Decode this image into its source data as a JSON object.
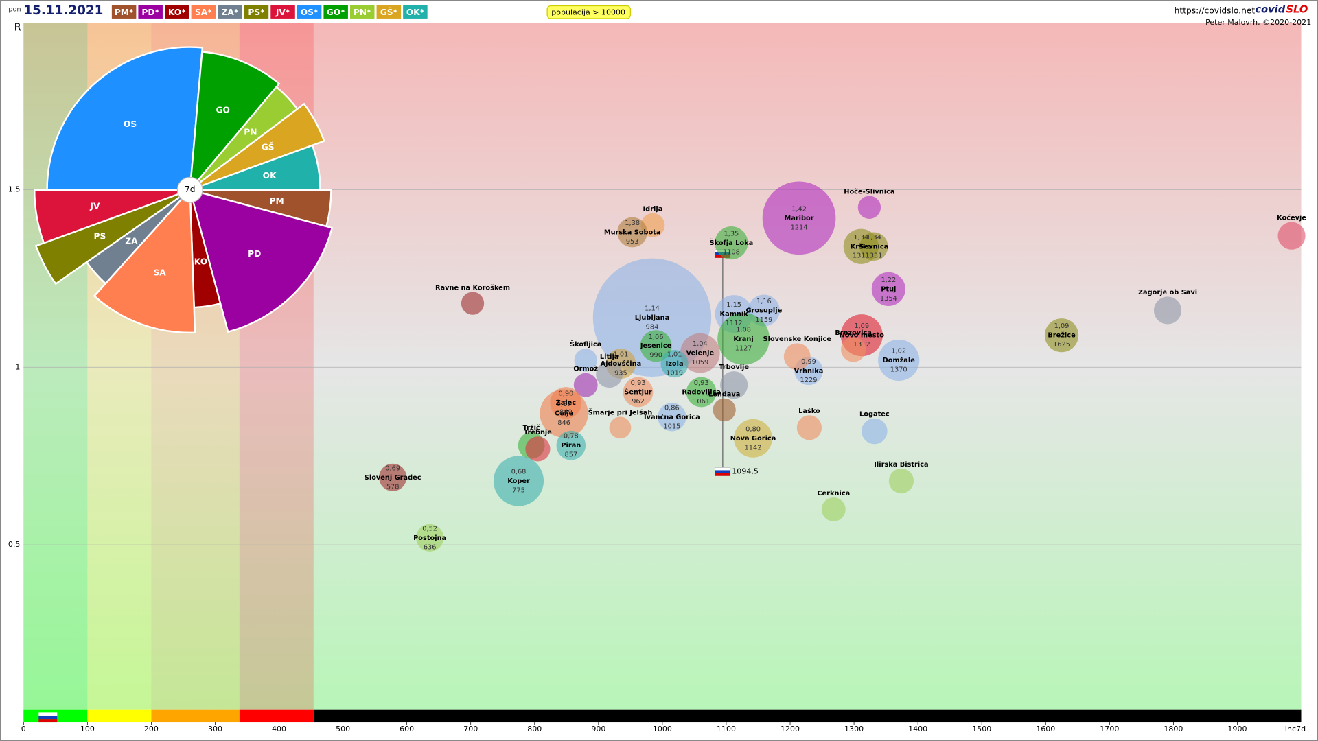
{
  "header": {
    "day": "pon",
    "date": "15.11.2021",
    "legend": [
      "PM*",
      "PD*",
      "KO*",
      "SA*",
      "ZA*",
      "PS*",
      "JV*",
      "OS*",
      "GO*",
      "PN*",
      "GŠ*",
      "OK*"
    ],
    "filter": "populacija > 10000",
    "url": "https://covidslo.net",
    "brand_a": "covid",
    "brand_b": "SLO",
    "credit": "Peter Malovrh, ©2020-2021"
  },
  "chart_data": [
    {
      "type": "scatter",
      "y_label": "R",
      "x_label": "Inc7d",
      "xlim": [
        0,
        2000
      ],
      "ylim": [
        0,
        1.97
      ],
      "xticks": [
        0,
        100,
        200,
        300,
        400,
        500,
        600,
        700,
        800,
        900,
        1000,
        1100,
        1200,
        1300,
        1400,
        1500,
        1600,
        1700,
        1800,
        1900
      ],
      "yticks": [
        0.5,
        1,
        1.5
      ],
      "grid": true,
      "zones": [
        {
          "to": 100,
          "color": "#00ff00"
        },
        {
          "to": 200,
          "color": "#ffff00"
        },
        {
          "to": 338,
          "color": "#ffa500"
        },
        {
          "to": 454,
          "color": "#ff0000"
        },
        {
          "to": 2000,
          "color": "#000000"
        }
      ],
      "reference": {
        "x": 1094.5,
        "x_label": "1094,5",
        "y": [
          1.32,
          0.706
        ]
      },
      "points": [
        {
          "name": "Ljubljana",
          "x": 984,
          "y": 1.14,
          "size": 295,
          "color": "#8fb4e8",
          "y_label": "1,14"
        },
        {
          "name": "Maribor",
          "x": 1214,
          "y": 1.42,
          "size": 113,
          "color": "#b030c0",
          "y_label": "1,42"
        },
        {
          "name": "Hoče-Slivnica",
          "x": 1324,
          "y": 1.45,
          "size": 11,
          "color": "#b030c0"
        },
        {
          "name": "Kočevje",
          "x": 1985,
          "y": 1.37,
          "size": 16,
          "color": "#e0506a"
        },
        {
          "name": "Škofja Loka",
          "x": 1108,
          "y": 1.35,
          "size": 23,
          "color": "#3cb03c",
          "y_label": "1,35"
        },
        {
          "name": "Idrija",
          "x": 985,
          "y": 1.4,
          "size": 12,
          "color": "#f0a050"
        },
        {
          "name": "Murska Sobota",
          "x": 953,
          "y": 1.38,
          "size": 19,
          "color": "#b08040",
          "y_label": "1,38"
        },
        {
          "name": "Krško",
          "x": 1311,
          "y": 1.34,
          "size": 26,
          "color": "#909020",
          "y_label": "1,34"
        },
        {
          "name": "Sevnica",
          "x": 1331,
          "y": 1.34,
          "size": 17,
          "color": "#909020",
          "y_label": "1,34"
        },
        {
          "name": "Ptuj",
          "x": 1354,
          "y": 1.22,
          "size": 24,
          "color": "#b030c0",
          "y_label": "1,22"
        },
        {
          "name": "Ravne na Koroškem",
          "x": 703,
          "y": 1.18,
          "size": 11,
          "color": "#a03030"
        },
        {
          "name": "Zagorje ob Savi",
          "x": 1791,
          "y": 1.16,
          "size": 16,
          "color": "#9098a8"
        },
        {
          "name": "Brežice",
          "x": 1625,
          "y": 1.09,
          "size": 24,
          "color": "#909020",
          "y_label": "1,09"
        },
        {
          "name": "Kamnik",
          "x": 1112,
          "y": 1.15,
          "size": 30,
          "color": "#8fb4e8",
          "y_label": "1,15"
        },
        {
          "name": "Grosuplje",
          "x": 1159,
          "y": 1.16,
          "size": 21,
          "color": "#8fb4e8",
          "y_label": "1,16"
        },
        {
          "name": "Kranj",
          "x": 1127,
          "y": 1.08,
          "size": 57,
          "color": "#3cb03c",
          "y_label": "1,08"
        },
        {
          "name": "Novo mesto",
          "x": 1312,
          "y": 1.09,
          "size": 37,
          "color": "#e02030",
          "y_label": "1,09"
        },
        {
          "name": "Domžale",
          "x": 1370,
          "y": 1.02,
          "size": 36,
          "color": "#8fb4e8",
          "y_label": "1,02"
        },
        {
          "name": "Vrhnika",
          "x": 1229,
          "y": 0.99,
          "size": 17,
          "color": "#8fb4e8",
          "y_label": "0,99"
        },
        {
          "name": "Slovenske Konjice",
          "x": 1211,
          "y": 1.03,
          "size": 15,
          "color": "#f09060"
        },
        {
          "name": "Brezovica",
          "x": 1299,
          "y": 1.05,
          "size": 13,
          "color": "#f09060"
        },
        {
          "name": "Velenje",
          "x": 1059,
          "y": 1.04,
          "size": 33,
          "color": "#c08080",
          "y_label": "1,04"
        },
        {
          "name": "Jesenice",
          "x": 990,
          "y": 1.06,
          "size": 21,
          "color": "#3cb03c",
          "y_label": "1,06"
        },
        {
          "name": "Izola",
          "x": 1019,
          "y": 1.01,
          "size": 16,
          "color": "#40b0b0",
          "y_label": "1,01"
        },
        {
          "name": "Ajdovščina",
          "x": 935,
          "y": 1.01,
          "size": 19,
          "color": "#d0a040",
          "y_label": "1,01"
        },
        {
          "name": "Šentjur",
          "x": 962,
          "y": 0.93,
          "size": 19,
          "color": "#f09060",
          "y_label": "0,93"
        },
        {
          "name": "Ormož",
          "x": 880,
          "y": 0.95,
          "size": 12,
          "color": "#a030b0"
        },
        {
          "name": "Litija",
          "x": 917,
          "y": 0.98,
          "size": 15,
          "color": "#9098a8"
        },
        {
          "name": "Škofljica",
          "x": 880,
          "y": 1.02,
          "size": 11,
          "color": "#8fb4e8"
        },
        {
          "name": "Celje",
          "x": 846,
          "y": 0.87,
          "size": 49,
          "color": "#f08050",
          "y_label": "0,87"
        },
        {
          "name": "Žalec",
          "x": 849,
          "y": 0.9,
          "size": 21,
          "color": "#f08050",
          "y_label": "0,90"
        },
        {
          "name": "Šmarje pri Jelšah",
          "x": 934,
          "y": 0.83,
          "size": 10,
          "color": "#f09060"
        },
        {
          "name": "Ivančna Gorica",
          "x": 1015,
          "y": 0.86,
          "size": 17,
          "color": "#8fb4e8",
          "y_label": "0,86"
        },
        {
          "name": "Radovljica",
          "x": 1061,
          "y": 0.93,
          "size": 19,
          "color": "#3cb03c",
          "y_label": "0,93"
        },
        {
          "name": "Lendava",
          "x": 1097,
          "y": 0.88,
          "size": 11,
          "color": "#a06030"
        },
        {
          "name": "Trbovlje",
          "x": 1112,
          "y": 0.95,
          "size": 16,
          "color": "#9098a8"
        },
        {
          "name": "Laško",
          "x": 1230,
          "y": 0.83,
          "size": 13,
          "color": "#f09060"
        },
        {
          "name": "Nova Gorica",
          "x": 1142,
          "y": 0.8,
          "size": 31,
          "color": "#d0b040",
          "y_label": "0,80"
        },
        {
          "name": "Logatec",
          "x": 1332,
          "y": 0.82,
          "size": 14,
          "color": "#8fb4e8"
        },
        {
          "name": "Ilirska Bistrica",
          "x": 1374,
          "y": 0.68,
          "size": 13,
          "color": "#a0d060"
        },
        {
          "name": "Cerknica",
          "x": 1268,
          "y": 0.6,
          "size": 12,
          "color": "#a0d060"
        },
        {
          "name": "Tržič",
          "x": 795,
          "y": 0.78,
          "size": 15,
          "color": "#3cb03c"
        },
        {
          "name": "Trebnje",
          "x": 805,
          "y": 0.77,
          "size": 13,
          "color": "#e03040"
        },
        {
          "name": "Piran",
          "x": 857,
          "y": 0.78,
          "size": 18,
          "color": "#40b0b0",
          "y_label": "0,78"
        },
        {
          "name": "Koper",
          "x": 775,
          "y": 0.68,
          "size": 53,
          "color": "#40b0b0",
          "y_label": "0,68"
        },
        {
          "name": "Slovenj Gradec",
          "x": 578,
          "y": 0.69,
          "size": 16,
          "color": "#a03030",
          "y_label": "0,69"
        },
        {
          "name": "Postojna",
          "x": 636,
          "y": 0.52,
          "size": 16,
          "color": "#a0d060",
          "y_label": "0,52"
        }
      ]
    },
    {
      "type": "polar-area",
      "center_label": "7d",
      "rlim": [
        0,
        200
      ],
      "categories": [
        "PM",
        "PD",
        "KO",
        "SA",
        "ZA",
        "PS",
        "JV",
        "OS",
        "GO",
        "PN",
        "GŠ",
        "OK"
      ],
      "values": [
        168,
        175,
        140,
        170,
        150,
        195,
        185,
        170,
        165,
        160,
        170,
        155
      ],
      "weights": [
        15,
        60,
        13,
        44,
        13,
        15,
        20,
        95,
        35,
        13,
        17,
        20
      ],
      "colors": [
        "#a0522d",
        "#9b00a0",
        "#a00000",
        "#ff7f50",
        "#708090",
        "#808000",
        "#dc143c",
        "#1e90ff",
        "#00a000",
        "#9acd32",
        "#daa520",
        "#20b2aa"
      ]
    }
  ]
}
